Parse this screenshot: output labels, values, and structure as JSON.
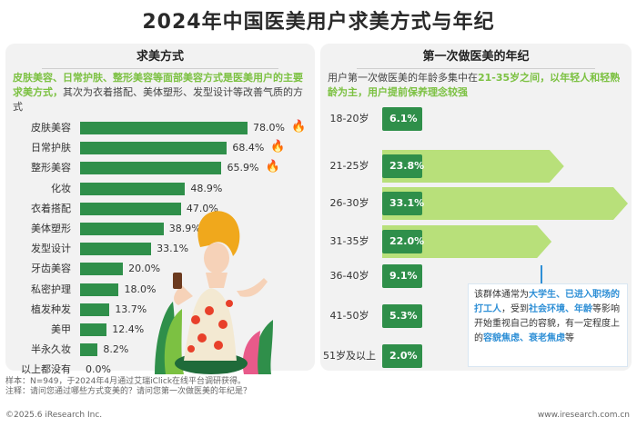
{
  "page": {
    "title": "2024年中国医美用户求美方式与年纪"
  },
  "left_panel": {
    "header": "求美方式",
    "desc_highlight": "皮肤美容、日常护肤、整形美容等面部美容方式是医美用户的主要求美方式，",
    "desc_rest": "其次为衣着搭配、美体塑形、发型设计等改善气质的方式"
  },
  "right_panel": {
    "header": "第一次做医美的年纪",
    "desc_prefix": "用户第一次做医美的年龄多集中在",
    "desc_range": "21-35岁之间",
    "desc_highlight": "，以年轻人和轻熟龄为主，用户提前保养理念较强",
    "note_parts": {
      "p1": "该群体通常为",
      "h1": "大学生、已进入职场的打工人",
      "p2": "，受到",
      "h2": "社会环境、年龄",
      "p3": "等影响开始重视自己的容貌，有一定程度上的",
      "h3": "容貌焦虑、衰老焦虑",
      "p4": "等"
    }
  },
  "chart_data": [
    {
      "type": "bar",
      "title": "求美方式",
      "categories": [
        "皮肤美容",
        "日常护肤",
        "整形美容",
        "化妆",
        "衣着搭配",
        "美体塑形",
        "发型设计",
        "牙齿美容",
        "私密护理",
        "植发种发",
        "美甲",
        "半永久妆",
        "以上都没有"
      ],
      "values": [
        78.0,
        68.4,
        65.9,
        48.9,
        47.0,
        38.9,
        33.1,
        20.0,
        18.0,
        13.7,
        12.4,
        8.2,
        0.0
      ],
      "value_labels": [
        "78.0%",
        "68.4%",
        "65.9%",
        "48.9%",
        "47.0%",
        "38.9%",
        "33.1%",
        "20.0%",
        "18.0%",
        "13.7%",
        "12.4%",
        "8.2%",
        "0.0%"
      ],
      "unit": "%",
      "color": "#2f8f4a",
      "highlighted_top3": true
    },
    {
      "type": "bar",
      "title": "第一次做医美的年纪",
      "categories": [
        "18-20岁",
        "21-25岁",
        "26-30岁",
        "31-35岁",
        "36-40岁",
        "41-50岁",
        "51岁及以上"
      ],
      "values": [
        6.1,
        23.8,
        33.1,
        22.0,
        9.1,
        5.3,
        2.0
      ],
      "value_labels": [
        "6.1%",
        "23.8%",
        "33.1%",
        "22.0%",
        "9.1%",
        "5.3%",
        "2.0%"
      ],
      "unit": "%",
      "color": "#2f8f4a",
      "highlight_color": "#b8e07a",
      "highlighted_categories": [
        "21-25岁",
        "26-30岁",
        "31-35岁"
      ]
    }
  ],
  "footer": {
    "sample": "样本：N=949，于2024年4月通过艾瑞iClick在线平台调研获得。",
    "note": "注释：请问您通过哪些方式变美的？请问您第一次做医美的年纪是？",
    "copyright": "©2025.6 iResearch Inc.",
    "website": "www.iresearch.com.cn"
  },
  "colors": {
    "bar": "#2f8f4a",
    "highlight_green": "#7cc142",
    "arrow_light": "#b8e07a",
    "accent_blue": "#2e8fd6",
    "flame": "#f5a623"
  }
}
